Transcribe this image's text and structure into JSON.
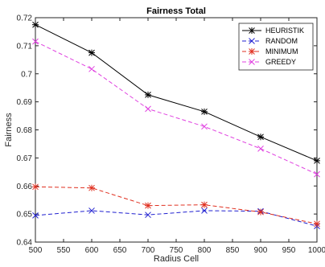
{
  "chart_data": {
    "type": "line",
    "title": "Fairness Total",
    "xlabel": "Radius Cell",
    "ylabel": "Fairness",
    "xlim": [
      500,
      1000
    ],
    "ylim": [
      0.64,
      0.72
    ],
    "x": [
      500,
      600,
      700,
      800,
      900,
      1000
    ],
    "xticks": [
      500,
      550,
      600,
      650,
      700,
      750,
      800,
      850,
      900,
      950,
      1000
    ],
    "yticks": [
      "0.64",
      "0.65",
      "0.66",
      "0.67",
      "0.68",
      "0.69",
      "0.7",
      "0.71",
      "0.72"
    ],
    "grid": false,
    "legend_position": "top-right",
    "series": [
      {
        "name": "HEURISTIK",
        "color": "#000000",
        "dash": "solid",
        "marker": "asterisk",
        "values": [
          0.7175,
          0.7075,
          0.6925,
          0.6865,
          0.6775,
          0.669
        ]
      },
      {
        "name": "RANDOM",
        "color": "#2020d0",
        "dash": "dashed",
        "marker": "x",
        "values": [
          0.6495,
          0.6512,
          0.6497,
          0.6512,
          0.651,
          0.6457
        ]
      },
      {
        "name": "MINIMUM",
        "color": "#e03020",
        "dash": "dashed",
        "marker": "asterisk",
        "values": [
          0.6597,
          0.6593,
          0.653,
          0.6533,
          0.6507,
          0.6465
        ]
      },
      {
        "name": "GREEDY",
        "color": "#e040e0",
        "dash": "dashed",
        "marker": "x",
        "values": [
          0.7115,
          0.7017,
          0.6875,
          0.6812,
          0.6733,
          0.6642
        ]
      }
    ]
  }
}
